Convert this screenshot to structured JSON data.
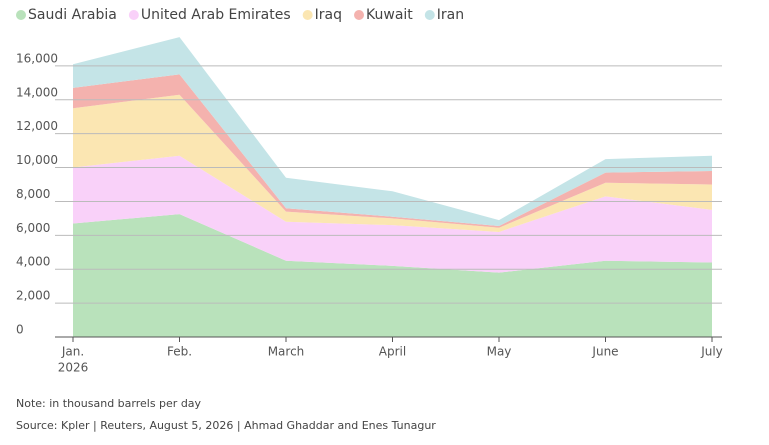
{
  "chart_data": {
    "type": "stacked_area",
    "categories": [
      "Jan.",
      "Feb.",
      "March",
      "April",
      "May",
      "June",
      "July"
    ],
    "first_category_year": "2026",
    "series": [
      {
        "name": "Saudi Arabia",
        "color": "#b9e2bb",
        "values": [
          6700,
          7250,
          4500,
          4200,
          3800,
          4500,
          4400
        ]
      },
      {
        "name": "United Arab Emirates",
        "color": "#f9d1f9",
        "values": [
          3300,
          3450,
          2300,
          2400,
          2400,
          3800,
          3100
        ]
      },
      {
        "name": "Iraq",
        "color": "#fbe6b2",
        "values": [
          3500,
          3600,
          600,
          400,
          250,
          800,
          1500
        ]
      },
      {
        "name": "Kuwait",
        "color": "#f4b2ae",
        "values": [
          1200,
          1200,
          200,
          100,
          100,
          600,
          800
        ]
      },
      {
        "name": "Iran",
        "color": "#c4e4e7",
        "values": [
          1400,
          2200,
          1800,
          1500,
          350,
          800,
          900
        ]
      }
    ],
    "ylim": [
      0,
      18000
    ],
    "yticks": [
      0,
      {
        "value": 2000,
        "label": "2,000"
      },
      {
        "value": 4000,
        "label": "4,000"
      },
      {
        "value": 6000,
        "label": "6,000"
      },
      {
        "value": 8000,
        "label": "8,000"
      },
      {
        "value": 10000,
        "label": "10,000"
      },
      {
        "value": 12000,
        "label": "12,000"
      },
      {
        "value": 14000,
        "label": "14,000"
      },
      {
        "value": 16000,
        "label": "16,000"
      }
    ],
    "grid": true,
    "legend": "top-left",
    "note": "Note: in thousand barrels per day",
    "source": "Source: Kpler | Reuters, August 5, 2026 | Ahmad Ghaddar and Enes Tunagur"
  }
}
